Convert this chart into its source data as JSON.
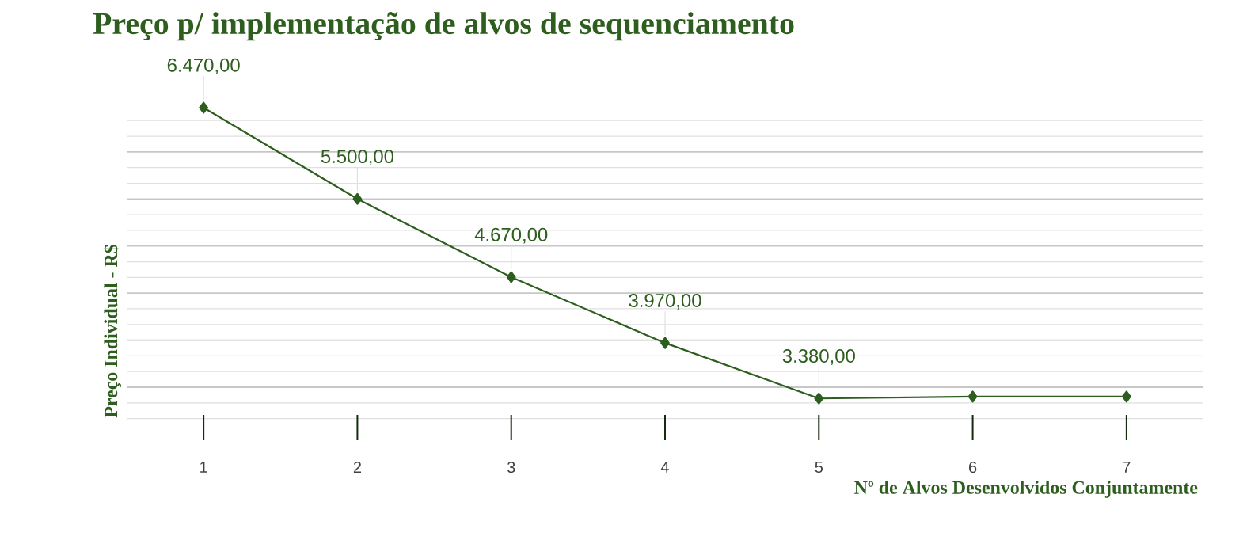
{
  "chart_data": {
    "type": "line",
    "title": "Preço p/ implementação de alvos de sequenciamento",
    "xlabel": "Nº de Alvos Desenvolvidos Conjuntamente",
    "ylabel": "Preço Individual - R$",
    "categories": [
      "1",
      "2",
      "3",
      "4",
      "5",
      "6",
      "7"
    ],
    "series": [
      {
        "color": "#2e5e1e",
        "values": [
          6470,
          5500,
          4670,
          3970,
          3380,
          3400,
          3400
        ],
        "value_labels": [
          "6.470,00",
          "5.500,00",
          "4.670,00",
          "3.970,00",
          "3.380,00",
          null,
          null
        ]
      }
    ],
    "grid": "y",
    "tick_labels": "x",
    "marker": "diamond",
    "line_style": "solid"
  }
}
